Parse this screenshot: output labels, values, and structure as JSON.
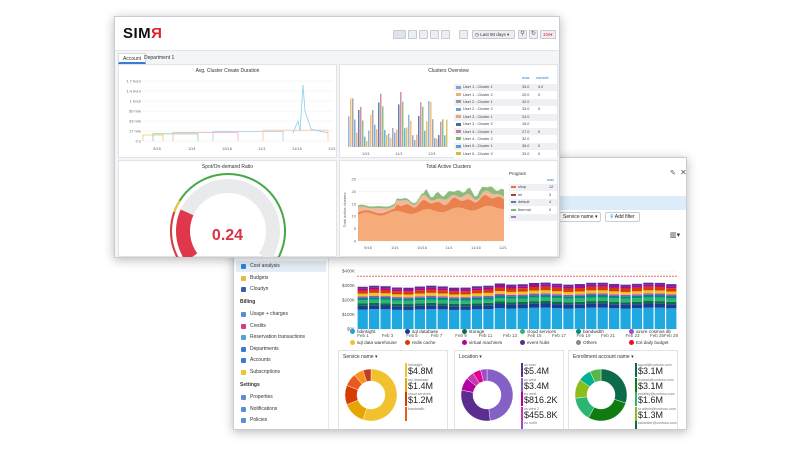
{
  "front": {
    "logo": {
      "text": "SIM",
      "accent": "Я"
    },
    "toolbar": {
      "range_label": "Last 90 days",
      "zoom_label": "10s"
    },
    "tabs": [
      {
        "label": "Account"
      },
      {
        "label": "Department 1"
      }
    ],
    "panels": {
      "duration": {
        "title": "Avg. Cluster Create Duration",
        "y_ticks": [
          "1.7 hour",
          "1.4 hour",
          "1 hour",
          "50 min",
          "33 min",
          "17 min",
          "0 s"
        ],
        "x_ticks": [
          "9/16",
          "10/1",
          "10/16",
          "11/1",
          "11/16",
          "12/1"
        ]
      },
      "overview": {
        "title": "Clusters Overview",
        "x_ticks": [
          "10/1",
          "11/1",
          "12/1"
        ],
        "y_ticks": [
          "60",
          "40",
          "20"
        ],
        "table_headers": [
          "max",
          "current"
        ],
        "rows": [
          {
            "name": "User 1 - Cluster 1",
            "max": "33.0",
            "current": "4.0",
            "color": "#8aa4c8"
          },
          {
            "name": "User 1 - Cluster 2",
            "max": "20.0",
            "current": "0",
            "color": "#f0b36e"
          },
          {
            "name": "User 2 - Cluster 1",
            "max": "32.0",
            "current": "",
            "color": "#9a9a9a"
          },
          {
            "name": "User 2 - Cluster 2",
            "max": "33.0",
            "current": "0",
            "color": "#6fa0cf"
          },
          {
            "name": "User 3 - Cluster 1",
            "max": "24.0",
            "current": "",
            "color": "#e8a57a"
          },
          {
            "name": "User 3 - Cluster 2",
            "max": "16.0",
            "current": "",
            "color": "#4e6a91"
          },
          {
            "name": "User 4 - Cluster 1",
            "max": "27.0",
            "current": "0",
            "color": "#c77f9a"
          },
          {
            "name": "User 4 - Cluster 2",
            "max": "32.0",
            "current": "",
            "color": "#7fb56f"
          },
          {
            "name": "User 5 - Cluster 1",
            "max": "36.0",
            "current": "0",
            "color": "#5aa3c7"
          },
          {
            "name": "User 5 - Cluster 2",
            "max": "33.0",
            "current": "0",
            "color": "#d9b84c"
          }
        ]
      },
      "gauge": {
        "title": "Spot/On-demand Ratio",
        "value": 0.24,
        "value_label": "0.24"
      },
      "active": {
        "title": "Total Active Clusters",
        "ylabel": "Total active clusters",
        "y_ticks": [
          "25",
          "20",
          "15",
          "10",
          "5",
          "0"
        ],
        "x_ticks": [
          "9/16",
          "10/1",
          "10/16",
          "11/1",
          "11/16",
          "12/1"
        ],
        "legend_title": "Program",
        "legend_header": "max",
        "legend": [
          {
            "name": "shop",
            "max": "12",
            "color": "#e8743b"
          },
          {
            "name": "ml",
            "max": "3",
            "color": "#c0392b"
          },
          {
            "name": "default",
            "max": "4",
            "color": "#4f81bd"
          },
          {
            "name": "thermal",
            "max": "0",
            "color": "#7fb56f"
          },
          {
            "name": "",
            "max": "",
            "color": "#9b7fc7"
          }
        ]
      }
    }
  },
  "back": {
    "filter_label": "Service name",
    "add_filter_label": "Add filter",
    "sidebar": {
      "items_top": [
        {
          "label": "Cost analysis",
          "color": "#2b88d8"
        },
        {
          "label": "Budgets",
          "color": "#e8b93a"
        },
        {
          "label": "Cloudyn",
          "color": "#3b5fa8"
        }
      ],
      "billing_header": "Billing",
      "billing_items": [
        {
          "label": "Usage + charges",
          "color": "#5b8dd6"
        },
        {
          "label": "Credits",
          "color": "#d63b8a"
        },
        {
          "label": "Reservation transactions",
          "color": "#5aa0d8"
        },
        {
          "label": "Departments",
          "color": "#3a7bd5"
        },
        {
          "label": "Accounts",
          "color": "#3a7bd5"
        },
        {
          "label": "Subscriptions",
          "color": "#f2c12e"
        }
      ],
      "settings_header": "Settings",
      "settings_items": [
        {
          "label": "Properties",
          "color": "#5a8fd0"
        },
        {
          "label": "Notifications",
          "color": "#5a8fd0"
        },
        {
          "label": "Policies",
          "color": "#5a8fd0"
        }
      ]
    },
    "cost_chart": {
      "y_ticks": [
        "$400K",
        "$300K",
        "$200K",
        "$100K",
        "$0K"
      ],
      "x_ticks": [
        "Feb 1",
        "Feb 3",
        "Feb 5",
        "Feb 7",
        "Feb 9",
        "Feb 11",
        "Feb 13",
        "Feb 15",
        "Feb 17",
        "Feb 19",
        "Feb 21",
        "Feb 23",
        "Feb 25"
      ],
      "x_end": "Feb 28"
    },
    "legend": [
      {
        "name": "hdinsight",
        "color": "#1fa7e0"
      },
      {
        "name": "sql database",
        "color": "#1f3a93"
      },
      {
        "name": "storage",
        "color": "#0e6b4a"
      },
      {
        "name": "cloud services",
        "color": "#2bb673"
      },
      {
        "name": "bandwidth",
        "color": "#008c7a"
      },
      {
        "name": "azure cosmos db",
        "color": "#9c4dcc"
      },
      {
        "name": "sql data warehouse",
        "color": "#f2c12e"
      },
      {
        "name": "redis cache",
        "color": "#d83b01"
      },
      {
        "name": "virtual machines",
        "color": "#b4009e"
      },
      {
        "name": "event hubs",
        "color": "#5c2d91"
      },
      {
        "name": "Others",
        "color": "#8a8886"
      },
      {
        "name": "Exl daily budget",
        "color": "#e81123"
      }
    ],
    "donuts": [
      {
        "header": "Service name",
        "kpis": [
          {
            "label": "hdinsight",
            "value": "$4.8M",
            "color": "#f2c12e"
          },
          {
            "label": "sql database",
            "value": "$1.4M",
            "color": "#e8a500"
          },
          {
            "label": "cloud services",
            "value": "$1.2M",
            "color": "#d83b01"
          },
          {
            "label": "bandwidth",
            "value": "",
            "color": "#ea5a1c"
          }
        ],
        "slices": [
          {
            "v": 55,
            "c": "#f2c12e"
          },
          {
            "v": 14,
            "c": "#e8a500"
          },
          {
            "v": 12,
            "c": "#d83b01"
          },
          {
            "v": 8,
            "c": "#ea5a1c"
          },
          {
            "v": 6,
            "c": "#f7941d"
          },
          {
            "v": 5,
            "c": "#c23b22"
          }
        ]
      },
      {
        "header": "Location",
        "kpis": [
          {
            "label": "us east",
            "value": "$5.4M",
            "color": "#5c2d91"
          },
          {
            "label": "us west",
            "value": "$3.4M",
            "color": "#8661c5"
          },
          {
            "label": "eu west",
            "value": "$816.2K",
            "color": "#b4009e"
          },
          {
            "label": "us west 2",
            "value": "$455.8K",
            "color": "#c239b3"
          },
          {
            "label": "eu north",
            "value": "",
            "color": "#9c4dcc"
          }
        ],
        "slices": [
          {
            "v": 48,
            "c": "#8661c5"
          },
          {
            "v": 30,
            "c": "#5c2d91"
          },
          {
            "v": 8,
            "c": "#b4009e"
          },
          {
            "v": 5,
            "c": "#c239b3"
          },
          {
            "v": 5,
            "c": "#e3008c"
          },
          {
            "v": 4,
            "c": "#9c4dcc"
          }
        ]
      },
      {
        "header": "Enrollment account name",
        "kpis": [
          {
            "label": "sgouti@contoso.com",
            "value": "$3.1M",
            "color": "#0e6b4a"
          },
          {
            "label": "ovabati@contoso.com",
            "value": "$3.1M",
            "color": "#107c10"
          },
          {
            "label": "prbaliey@contoso.com",
            "value": "$1.6M",
            "color": "#2bb673"
          },
          {
            "label": "sr admin@contoso.com",
            "value": "$1.3M",
            "color": "#8cbd18"
          },
          {
            "label": "ssbanker@contoso.com",
            "value": "",
            "color": "#0e6b4a"
          }
        ],
        "slices": [
          {
            "v": 30,
            "c": "#0e6b4a"
          },
          {
            "v": 28,
            "c": "#107c10"
          },
          {
            "v": 15,
            "c": "#2bb673"
          },
          {
            "v": 12,
            "c": "#8cbd18"
          },
          {
            "v": 8,
            "c": "#00b294"
          },
          {
            "v": 7,
            "c": "#55b848"
          }
        ]
      }
    ]
  }
}
